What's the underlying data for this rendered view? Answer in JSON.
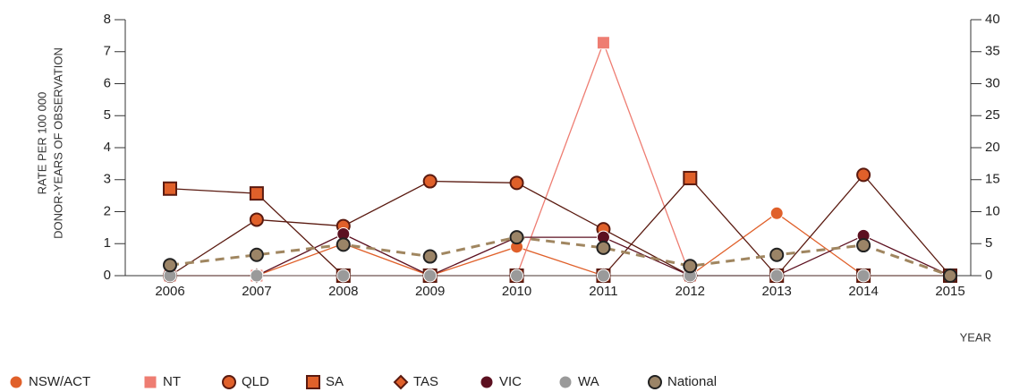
{
  "chart_data": {
    "type": "line",
    "y_label": [
      "RATE PER 100 000",
      "DONOR-YEARS OF OBSERVATION"
    ],
    "x_label": "YEAR",
    "categories": [
      "2006",
      "2007",
      "2008",
      "2009",
      "2010",
      "2011",
      "2012",
      "2013",
      "2014",
      "2015"
    ],
    "ylim": [
      0,
      8
    ],
    "yticks": [
      0,
      1,
      2,
      3,
      4,
      5,
      6,
      7,
      8
    ],
    "y2lim": [
      0,
      40
    ],
    "y2ticks": [
      0,
      5,
      10,
      15,
      20,
      25,
      30,
      35,
      40
    ],
    "legend": "bottom-left",
    "series": [
      {
        "name": "NSW/ACT",
        "color": "#e0602a",
        "marker": "circle",
        "values": [
          0,
          0,
          1.0,
          0,
          0.9,
          0,
          0,
          1.95,
          0,
          0
        ]
      },
      {
        "name": "NT",
        "color": "#ee7d72",
        "marker": "square",
        "axis": "y2",
        "values": [
          0,
          0,
          0,
          0,
          0,
          36.4,
          0,
          0,
          0,
          0
        ]
      },
      {
        "name": "QLD",
        "color": "#e0602a",
        "outline": "#5a1a10",
        "marker": "circle",
        "values": [
          0,
          1.75,
          1.55,
          2.95,
          2.9,
          1.45,
          0,
          0,
          3.15,
          0
        ]
      },
      {
        "name": "SA",
        "color": "#e0602a",
        "outline": "#5a1a10",
        "marker": "square",
        "values": [
          2.72,
          2.57,
          0,
          0,
          0,
          0,
          3.05,
          0,
          0,
          0
        ]
      },
      {
        "name": "TAS",
        "color": "#e0602a",
        "outline": "#5a1a10",
        "marker": "diamond",
        "values": [
          0,
          0,
          0,
          0,
          0,
          0,
          0,
          0,
          0,
          0
        ]
      },
      {
        "name": "VIC",
        "color": "#5c1020",
        "marker": "circle",
        "values": [
          0,
          0,
          1.3,
          0,
          1.2,
          1.2,
          0,
          0,
          1.25,
          0
        ]
      },
      {
        "name": "WA",
        "color": "#9a9a9a",
        "marker": "circle",
        "values": [
          0,
          0,
          0,
          0,
          0,
          0,
          0,
          0,
          0,
          0
        ]
      },
      {
        "name": "National",
        "color": "#9b8467",
        "outline": "#222222",
        "marker": "circle",
        "line_color": "#a08660",
        "dashed": true,
        "values": [
          0.33,
          0.65,
          0.97,
          0.6,
          1.2,
          0.87,
          0.3,
          0.65,
          0.95,
          0
        ]
      }
    ]
  }
}
